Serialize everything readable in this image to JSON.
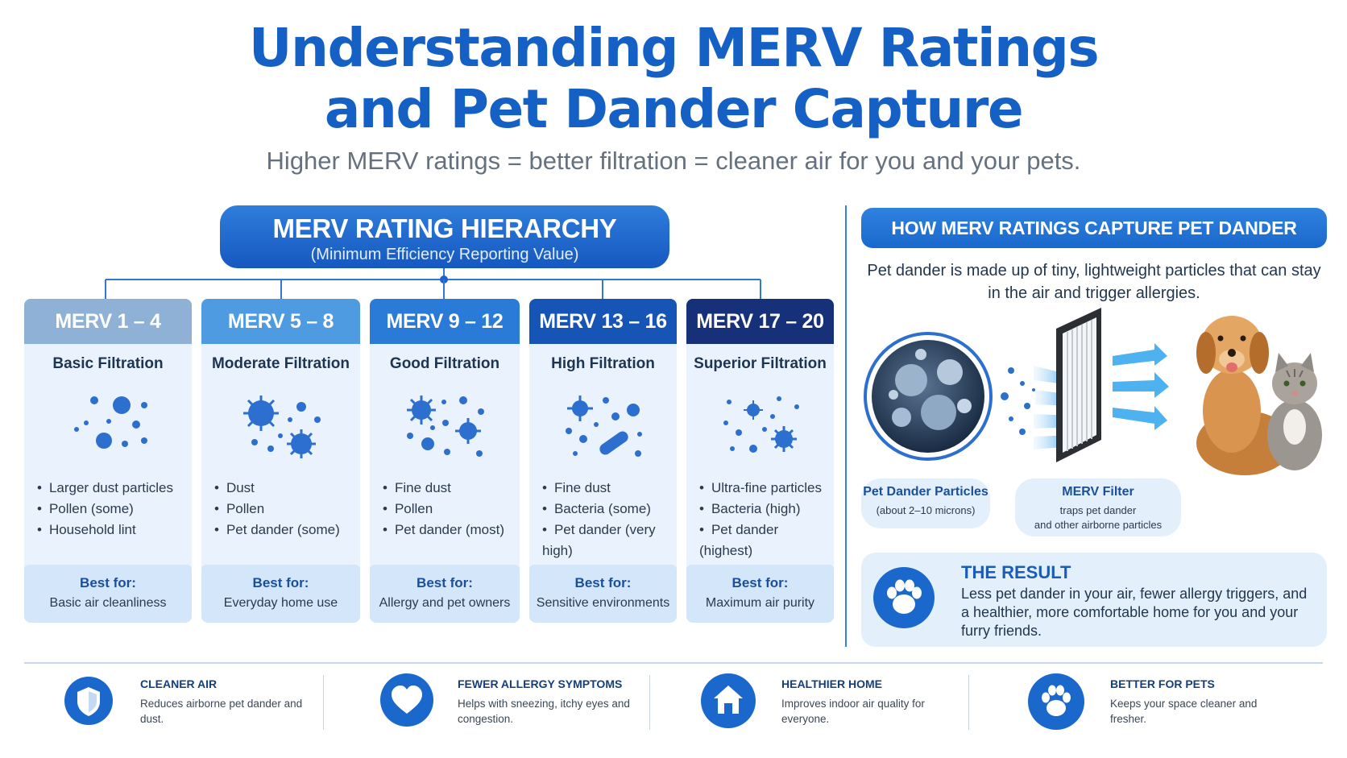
{
  "title_line1": "Understanding MERV Ratings",
  "title_line2": "and Pet Dander Capture",
  "subtitle": "Higher MERV ratings = better filtration = cleaner air for you and your pets.",
  "hierarchy": {
    "heading": "MERV RATING HIERARCHY",
    "subheading": "(Minimum Efficiency Reporting Value)",
    "columns": [
      {
        "range": "MERV 1 – 4",
        "name": "Basic Filtration",
        "color": "#8fb1d6",
        "items": [
          "Larger dust particles",
          "Pollen (some)",
          "Household lint"
        ],
        "best_label": "Best for:",
        "best_value": "Basic air cleanliness"
      },
      {
        "range": "MERV 5 – 8",
        "name": "Moderate Filtration",
        "color": "#4f9be2",
        "items": [
          "Dust",
          "Pollen",
          "Pet dander (some)"
        ],
        "best_label": "Best for:",
        "best_value": "Everyday home use"
      },
      {
        "range": "MERV 9 – 12",
        "name": "Good Filtration",
        "color": "#2a7bd8",
        "items": [
          "Fine dust",
          "Pollen",
          "Pet dander (most)"
        ],
        "best_label": "Best for:",
        "best_value": "Allergy and pet owners"
      },
      {
        "range": "MERV 13 – 16",
        "name": "High Filtration",
        "color": "#1654b6",
        "items": [
          "Fine dust",
          "Bacteria (some)",
          "Pet dander (very high)"
        ],
        "best_label": "Best for:",
        "best_value": "Sensitive environments"
      },
      {
        "range": "MERV 17 – 20",
        "name": "Superior Filtration",
        "color": "#17307a",
        "items": [
          "Ultra-fine particles",
          "Bacteria (high)",
          "Pet dander (highest)"
        ],
        "best_label": "Best for:",
        "best_value": "Maximum air purity"
      }
    ]
  },
  "capture": {
    "heading": "HOW MERV RATINGS CAPTURE PET DANDER",
    "description": "Pet dander is made up of tiny, lightweight particles that can stay in the air and trigger allergies.",
    "dander_label": "Pet Dander Particles",
    "dander_sub": "(about 2–10 microns)",
    "filter_label": "MERV Filter",
    "filter_sub_1": "traps pet dander",
    "filter_sub_2": "and other airborne particles"
  },
  "result": {
    "title": "THE RESULT",
    "text": "Less pet dander in your air, fewer allergy triggers, and a healthier, more comfortable home for you and your furry friends."
  },
  "benefits": [
    {
      "title": "CLEANER AIR",
      "desc": "Reduces airborne pet dander and dust.",
      "icon": "shield-icon"
    },
    {
      "title": "FEWER ALLERGY SYMPTOMS",
      "desc": "Helps with sneezing, itchy eyes and congestion.",
      "icon": "heart-icon"
    },
    {
      "title": "HEALTHIER HOME",
      "desc": "Improves indoor air quality for everyone.",
      "icon": "house-icon"
    },
    {
      "title": "BETTER FOR PETS",
      "desc": "Keeps your space cleaner and fresher.",
      "icon": "paw-icon"
    }
  ]
}
